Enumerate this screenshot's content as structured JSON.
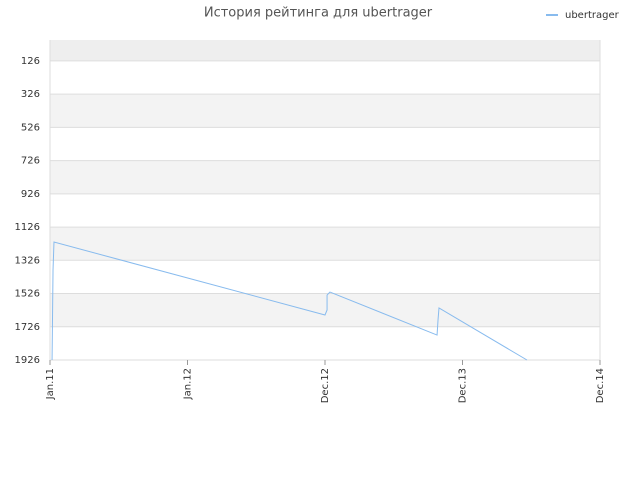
{
  "chart_data": {
    "type": "line",
    "title": "История рейтинга для ubertrager",
    "x": [
      0.015,
      0.022,
      0.029,
      2.0,
      2.015,
      2.015,
      2.036,
      2.815,
      2.822,
      2.829,
      3.469
    ],
    "series": [
      {
        "name": "ubertrager",
        "color": "#88bbee",
        "values": [
          1926,
          1384,
          1216,
          1655,
          1625,
          1535,
          1517,
          1776,
          1685,
          1613,
          1926
        ]
      }
    ],
    "xlim": [
      0,
      4
    ],
    "xticks": [
      {
        "value": 0,
        "label": "Jan.11"
      },
      {
        "value": 1,
        "label": "Jan.12"
      },
      {
        "value": 2,
        "label": "Dec.12"
      },
      {
        "value": 3,
        "label": "Dec.13"
      },
      {
        "value": 4,
        "label": "Dec.14"
      }
    ],
    "ylim": [
      1926,
      0
    ],
    "yticks": [
      126,
      326,
      526,
      726,
      926,
      1126,
      1326,
      1526,
      1726,
      1926
    ],
    "legend": "top-right",
    "grid": true
  }
}
